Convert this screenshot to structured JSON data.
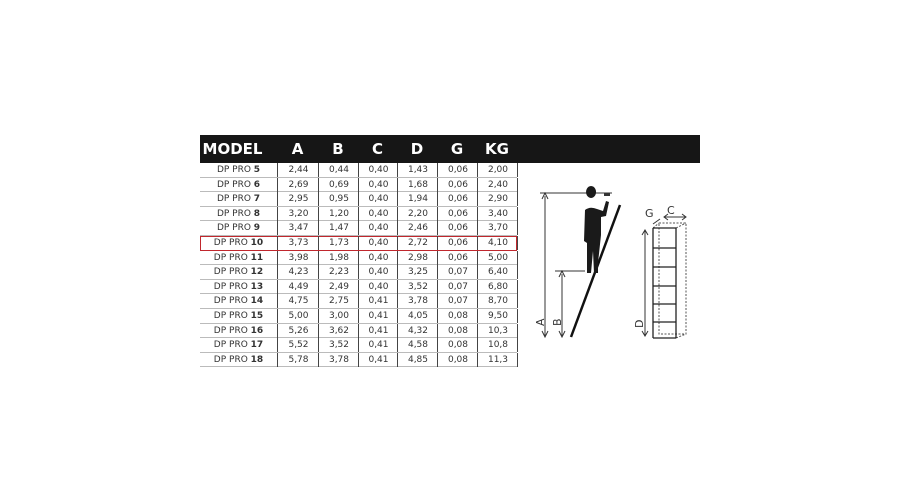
{
  "table": {
    "headers": [
      "MODEL",
      "A",
      "B",
      "C",
      "D",
      "G",
      "KG"
    ],
    "highlighted_model": "10",
    "highlight_color": "#c0272d",
    "rows": [
      {
        "prefix": "DP PRO",
        "num": "5",
        "values": [
          "2,44",
          "0,44",
          "0,40",
          "1,43",
          "0,06",
          "2,00"
        ]
      },
      {
        "prefix": "DP PRO",
        "num": "6",
        "values": [
          "2,69",
          "0,69",
          "0,40",
          "1,68",
          "0,06",
          "2,40"
        ]
      },
      {
        "prefix": "DP PRO",
        "num": "7",
        "values": [
          "2,95",
          "0,95",
          "0,40",
          "1,94",
          "0,06",
          "2,90"
        ]
      },
      {
        "prefix": "DP PRO",
        "num": "8",
        "values": [
          "3,20",
          "1,20",
          "0,40",
          "2,20",
          "0,06",
          "3,40"
        ]
      },
      {
        "prefix": "DP PRO",
        "num": "9",
        "values": [
          "3,47",
          "1,47",
          "0,40",
          "2,46",
          "0,06",
          "3,70"
        ]
      },
      {
        "prefix": "DP PRO",
        "num": "10",
        "values": [
          "3,73",
          "1,73",
          "0,40",
          "2,72",
          "0,06",
          "4,10"
        ]
      },
      {
        "prefix": "DP PRO",
        "num": "11",
        "values": [
          "3,98",
          "1,98",
          "0,40",
          "2,98",
          "0,06",
          "5,00"
        ]
      },
      {
        "prefix": "DP PRO",
        "num": "12",
        "values": [
          "4,23",
          "2,23",
          "0,40",
          "3,25",
          "0,07",
          "6,40"
        ]
      },
      {
        "prefix": "DP PRO",
        "num": "13",
        "values": [
          "4,49",
          "2,49",
          "0,40",
          "3,52",
          "0,07",
          "6,80"
        ]
      },
      {
        "prefix": "DP PRO",
        "num": "14",
        "values": [
          "4,75",
          "2,75",
          "0,41",
          "3,78",
          "0,07",
          "8,70"
        ]
      },
      {
        "prefix": "DP PRO",
        "num": "15",
        "values": [
          "5,00",
          "3,00",
          "0,41",
          "4,05",
          "0,08",
          "9,50"
        ]
      },
      {
        "prefix": "DP PRO",
        "num": "16",
        "values": [
          "5,26",
          "3,62",
          "0,41",
          "4,32",
          "0,08",
          "10,3"
        ]
      },
      {
        "prefix": "DP PRO",
        "num": "17",
        "values": [
          "5,52",
          "3,52",
          "0,41",
          "4,58",
          "0,08",
          "10,8"
        ]
      },
      {
        "prefix": "DP PRO",
        "num": "18",
        "values": [
          "5,78",
          "3,78",
          "0,41",
          "4,85",
          "0,08",
          "11,3"
        ]
      }
    ]
  },
  "diagram": {
    "labels": {
      "a": "A",
      "b": "B",
      "c": "C",
      "d": "D",
      "g": "G"
    }
  }
}
